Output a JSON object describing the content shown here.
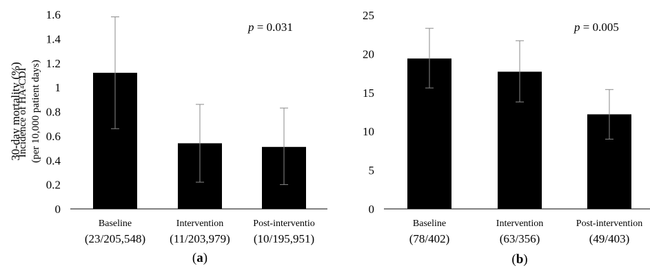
{
  "chart_data": [
    {
      "type": "bar",
      "panel_label": "a",
      "categories": [
        "Baseline",
        "Intervention",
        "Post-interventio"
      ],
      "category_counts": [
        "(23/205,548)",
        "(11/203,979)",
        "(10/195,951)"
      ],
      "values": [
        1.12,
        0.54,
        0.51
      ],
      "error_low": [
        0.66,
        0.22,
        0.2
      ],
      "error_high": [
        1.58,
        0.86,
        0.83
      ],
      "ylabel_line1": "Incidence  of HA-CDI",
      "ylabel_line2": "(per 10,000 patient days)",
      "ylim": [
        0,
        1.6
      ],
      "yticks": [
        "0",
        "0.2",
        "0.4",
        "0.6",
        "0.8",
        "1",
        "1.2",
        "1.4",
        "1.6"
      ],
      "annotation_italic": "p",
      "annotation_value": " = 0.031",
      "bar_color": "#000000",
      "grid": false
    },
    {
      "type": "bar",
      "panel_label": "b",
      "categories": [
        "Baseline",
        "Intervention",
        "Post-intervention"
      ],
      "category_counts": [
        "(78/402)",
        "(63/356)",
        "(49/403)"
      ],
      "values": [
        19.4,
        17.7,
        12.2
      ],
      "error_low": [
        15.6,
        13.8,
        9.0
      ],
      "error_high": [
        23.3,
        21.7,
        15.4
      ],
      "ylabel": "30-day mortality (%)",
      "ylim": [
        0,
        25
      ],
      "yticks": [
        "0",
        "5",
        "10",
        "15",
        "20",
        "25"
      ],
      "annotation_italic": "p",
      "annotation_value": " = 0.005",
      "bar_color": "#000000",
      "grid": false
    }
  ]
}
